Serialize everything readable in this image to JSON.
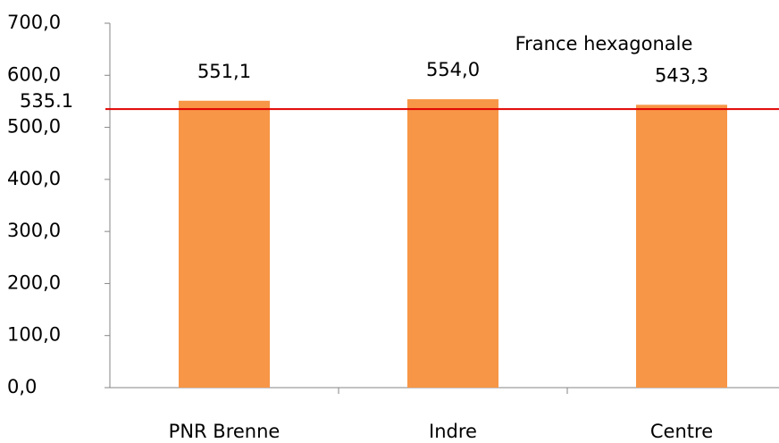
{
  "chart_data": {
    "type": "bar",
    "categories": [
      "PNR Brenne",
      "Indre",
      "Centre"
    ],
    "values": [
      551.1,
      554.0,
      543.3
    ],
    "value_labels": [
      "551,1",
      "554,0",
      "543,3"
    ],
    "color": "#f79646",
    "ylim": [
      0,
      700
    ],
    "yticks": [
      {
        "value": 0,
        "label": "0,0"
      },
      {
        "value": 100,
        "label": "100,0"
      },
      {
        "value": 200,
        "label": "200,0"
      },
      {
        "value": 300,
        "label": "300,0"
      },
      {
        "value": 400,
        "label": "400,0"
      },
      {
        "value": 500,
        "label": "500,0"
      },
      {
        "value": 600,
        "label": "600,0"
      },
      {
        "value": 700,
        "label": "700,0"
      }
    ],
    "reference_line": {
      "value": 535.1,
      "label": "France hexagonale",
      "color": "#e00000"
    }
  }
}
